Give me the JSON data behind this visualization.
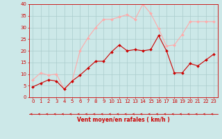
{
  "x": [
    0,
    1,
    2,
    3,
    4,
    5,
    6,
    7,
    8,
    9,
    10,
    11,
    12,
    13,
    14,
    15,
    16,
    17,
    18,
    19,
    20,
    21,
    22,
    23
  ],
  "wind_avg": [
    4.5,
    6.0,
    7.5,
    7.0,
    3.5,
    7.0,
    9.5,
    12.5,
    15.5,
    15.5,
    19.5,
    22.5,
    20.0,
    20.5,
    20.0,
    20.5,
    26.5,
    20.0,
    10.5,
    10.5,
    14.5,
    13.5,
    16.0,
    18.5
  ],
  "wind_gust": [
    7.5,
    10.5,
    9.5,
    10.0,
    3.5,
    7.0,
    20.0,
    25.5,
    30.0,
    33.5,
    33.5,
    34.5,
    35.5,
    33.5,
    40.0,
    36.0,
    29.5,
    22.0,
    22.5,
    27.0,
    32.5,
    32.5,
    32.5,
    32.5
  ],
  "color_avg": "#cc0000",
  "color_gust": "#ffaaaa",
  "bg_color": "#cce8e8",
  "grid_color": "#aacccc",
  "xlabel": "Vent moyen/en rafales ( km/h )",
  "ylim_min": 0,
  "ylim_max": 40,
  "yticks": [
    0,
    5,
    10,
    15,
    20,
    25,
    30,
    35,
    40
  ],
  "xticks": [
    0,
    1,
    2,
    3,
    4,
    5,
    6,
    7,
    8,
    9,
    10,
    11,
    12,
    13,
    14,
    15,
    16,
    17,
    18,
    19,
    20,
    21,
    22,
    23
  ],
  "tick_color": "#cc0000",
  "xlabel_color": "#cc0000",
  "spine_color": "#cc0000",
  "arrow_color": "#cc0000",
  "tick_fontsize": 5,
  "xlabel_fontsize": 5.5
}
